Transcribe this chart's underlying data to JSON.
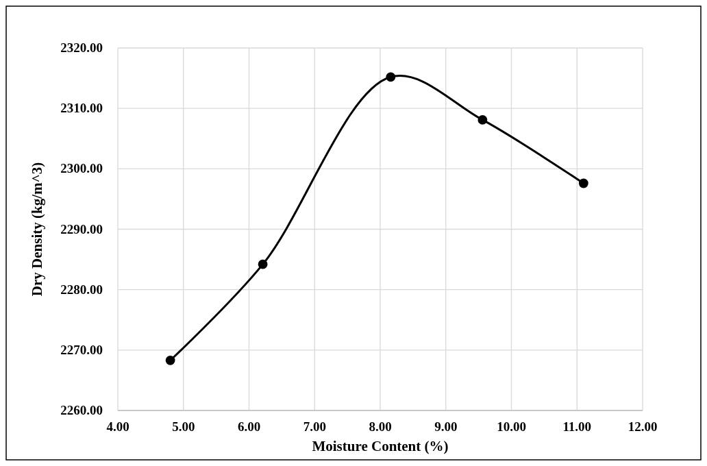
{
  "chart_data": {
    "type": "line",
    "xlabel": "Moisture Content (%)",
    "ylabel": "Dry Density (kg/m^3)",
    "x": [
      4.8,
      6.21,
      8.16,
      9.56,
      11.1
    ],
    "series": [
      {
        "color": "#000000",
        "values": [
          2268.3,
          2284.2,
          2315.2,
          2308.1,
          2297.6
        ]
      }
    ],
    "xlim": [
      4,
      12
    ],
    "xticks": [
      {
        "value": 4,
        "label": "4.00"
      },
      {
        "value": 5,
        "label": "5.00"
      },
      {
        "value": 6,
        "label": "6.00"
      },
      {
        "value": 7,
        "label": "7.00"
      },
      {
        "value": 8,
        "label": "8.00"
      },
      {
        "value": 9,
        "label": "9.00"
      },
      {
        "value": 10,
        "label": "10.00"
      },
      {
        "value": 11,
        "label": "11.00"
      },
      {
        "value": 12,
        "label": "12.00"
      }
    ],
    "ylim": [
      2260,
      2320
    ],
    "yticks": [
      {
        "value": 2260,
        "label": "2260.00"
      },
      {
        "value": 2270,
        "label": "2270.00"
      },
      {
        "value": 2280,
        "label": "2280.00"
      },
      {
        "value": 2290,
        "label": "2290.00"
      },
      {
        "value": 2300,
        "label": "2300.00"
      },
      {
        "value": 2310,
        "label": "2310.00"
      },
      {
        "value": 2320,
        "label": "2320.00"
      }
    ],
    "grid": true,
    "marker": "circle",
    "line_style": "solid"
  }
}
